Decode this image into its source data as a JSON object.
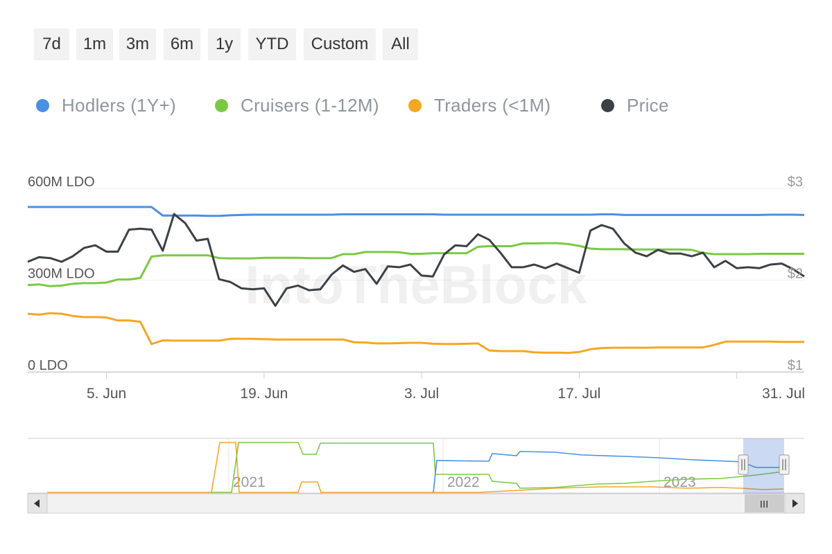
{
  "range_selector": {
    "buttons": [
      "7d",
      "1m",
      "3m",
      "6m",
      "1y",
      "YTD",
      "Custom",
      "All"
    ]
  },
  "legend": [
    {
      "label": "Hodlers (1Y+)",
      "color": "#4a90e2"
    },
    {
      "label": "Cruisers (1-12M)",
      "color": "#7ac943"
    },
    {
      "label": "Traders (<1M)",
      "color": "#f5a623"
    },
    {
      "label": "Price",
      "color": "#3c4146"
    }
  ],
  "watermark": "IntoTheBlock",
  "chart_data": {
    "type": "line",
    "x_tick_labels": [
      "5. Jun",
      "19. Jun",
      "3. Jul",
      "17. Jul",
      "31. Jul"
    ],
    "left_axis": {
      "labels": [
        "600M LDO",
        "300M LDO",
        "0 LDO"
      ],
      "ylim": [
        0,
        600
      ],
      "unit": "M LDO"
    },
    "right_axis": {
      "labels": [
        "$3",
        "$2",
        "$1"
      ],
      "ylim": [
        1,
        3
      ],
      "unit": "$"
    },
    "x_days": [
      0,
      1,
      2,
      3,
      4,
      5,
      6,
      7,
      8,
      9,
      10,
      11,
      12,
      13,
      14,
      15,
      16,
      17,
      18,
      19,
      20,
      21,
      22,
      23,
      24,
      25,
      26,
      27,
      28,
      29,
      30,
      31,
      32,
      33,
      34,
      35,
      36,
      37,
      38,
      39,
      40,
      41,
      42,
      43,
      44,
      45,
      46,
      47,
      48,
      49,
      50,
      51,
      52,
      53,
      54,
      55,
      56,
      57,
      58,
      59,
      60,
      61,
      62,
      63,
      64,
      65,
      66,
      67,
      68,
      69
    ],
    "series": [
      {
        "name": "Hodlers (1Y+)",
        "axis": "left",
        "values": [
          539,
          539,
          539,
          539,
          539,
          539,
          539,
          539,
          539,
          539,
          539,
          539,
          511,
          511,
          511,
          511,
          510,
          510,
          512,
          513,
          514,
          514,
          514,
          514,
          514,
          514,
          514,
          514,
          515,
          515,
          515,
          515,
          515,
          515,
          515,
          515,
          515,
          514,
          514,
          514,
          514,
          514,
          514,
          514,
          514,
          514,
          514,
          514,
          514,
          514,
          514,
          515,
          515,
          513,
          513,
          513,
          513,
          513,
          513,
          513,
          513,
          513,
          513,
          513,
          513,
          513,
          514,
          514,
          514,
          513
        ]
      },
      {
        "name": "Cruisers (1-12M)",
        "axis": "left",
        "values": [
          284,
          286,
          280,
          282,
          288,
          290,
          290,
          292,
          302,
          302,
          307,
          377,
          381,
          381,
          381,
          381,
          381,
          372,
          371,
          371,
          371,
          373,
          373,
          373,
          373,
          372,
          372,
          372,
          385,
          385,
          392,
          392,
          392,
          391,
          386,
          386,
          388,
          388,
          388,
          388,
          409,
          411,
          411,
          411,
          420,
          420,
          421,
          421,
          418,
          412,
          403,
          401,
          401,
          401,
          400,
          400,
          400,
          400,
          400,
          399,
          389,
          385,
          385,
          385,
          385,
          386,
          386,
          386,
          386,
          386
        ]
      },
      {
        "name": "Traders (<1M)",
        "axis": "left",
        "values": [
          190,
          187,
          192,
          190,
          183,
          179,
          179,
          178,
          168,
          168,
          164,
          91,
          103,
          102,
          102,
          102,
          102,
          102,
          108,
          108,
          108,
          107,
          106,
          106,
          106,
          106,
          106,
          106,
          106,
          97,
          96,
          93,
          93,
          94,
          95,
          95,
          92,
          91,
          91,
          92,
          93,
          70,
          68,
          68,
          68,
          64,
          63,
          63,
          62,
          65,
          74,
          78,
          79,
          79,
          79,
          79,
          80,
          80,
          80,
          80,
          80,
          88,
          99,
          99,
          99,
          99,
          99,
          98,
          98,
          98
        ]
      },
      {
        "name": "Price",
        "axis": "right",
        "values": [
          2.2,
          2.25,
          2.24,
          2.2,
          2.26,
          2.35,
          2.38,
          2.31,
          2.31,
          2.55,
          2.56,
          2.55,
          2.32,
          2.72,
          2.62,
          2.43,
          2.45,
          2.01,
          1.98,
          1.91,
          1.9,
          1.91,
          1.72,
          1.91,
          1.94,
          1.89,
          1.9,
          2.06,
          2.16,
          2.09,
          2.12,
          1.96,
          2.15,
          2.14,
          2.17,
          2.05,
          2.04,
          2.28,
          2.38,
          2.37,
          2.5,
          2.44,
          2.3,
          2.14,
          2.14,
          2.17,
          2.13,
          2.18,
          2.13,
          2.08,
          2.54,
          2.6,
          2.56,
          2.4,
          2.3,
          2.26,
          2.33,
          2.29,
          2.29,
          2.26,
          2.3,
          2.14,
          2.21,
          2.13,
          2.14,
          2.13,
          2.17,
          2.18,
          2.12,
          2.04
        ]
      }
    ],
    "navigator": {
      "year_labels": [
        "2021",
        "2022",
        "2023"
      ],
      "scrollbar_grip": "III"
    }
  }
}
